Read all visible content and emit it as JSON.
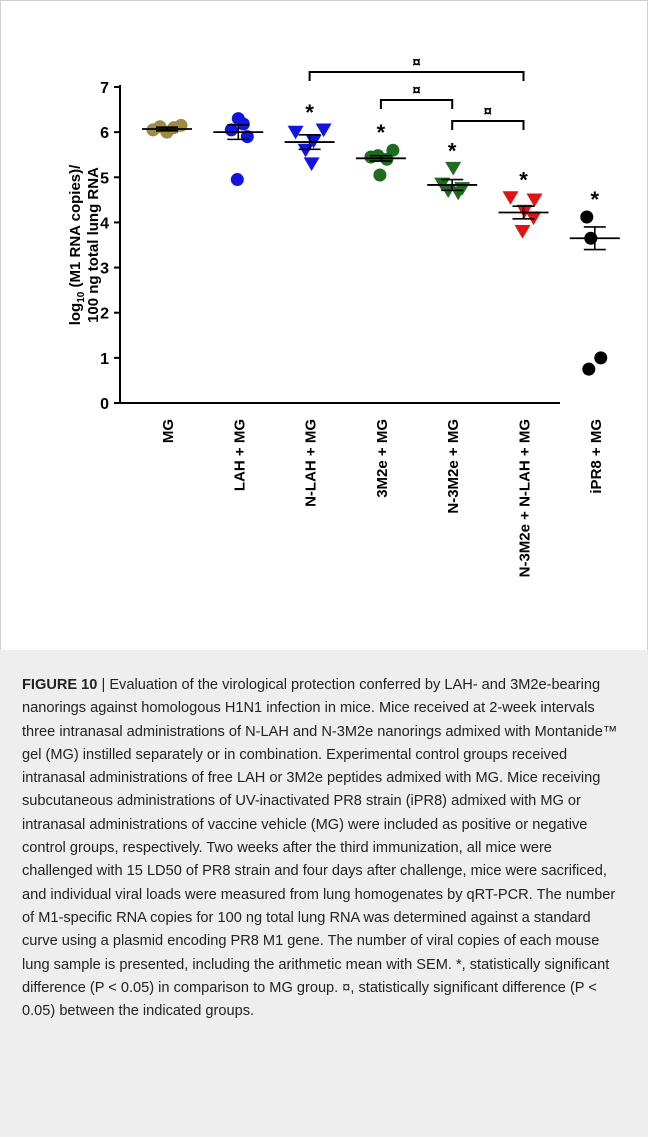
{
  "chart_data": {
    "type": "scatter",
    "title": "",
    "ylabel_line1": "log10 (M1 RNA copies)/",
    "ylabel_line2": "100 ng total lung RNA",
    "ylim": [
      0,
      7
    ],
    "yticks": [
      "0",
      "1",
      "2",
      "3",
      "4",
      "5",
      "6",
      "7"
    ],
    "categories": [
      "MG",
      "LAH + MG",
      "N-LAH + MG",
      "3M2e + MG",
      "N-3M2e + MG",
      "N-3M2e + N-LAH + MG",
      "iPR8 + MG"
    ],
    "groups": [
      {
        "name": "MG",
        "marker": "circle",
        "color": "#9c8a45",
        "points": [
          6.05,
          6.12,
          6.0,
          6.1,
          6.15
        ],
        "mean": 6.07,
        "sem": 0.04,
        "significance": ""
      },
      {
        "name": "LAH + MG",
        "marker": "circle",
        "color": "#1414e0",
        "points": [
          6.3,
          6.18,
          6.05,
          5.9,
          4.95
        ],
        "mean": 6.0,
        "sem": 0.16,
        "significance": ""
      },
      {
        "name": "N-LAH + MG",
        "marker": "triangle-down",
        "color": "#1414e0",
        "points": [
          6.0,
          6.05,
          5.8,
          5.6,
          5.3
        ],
        "mean": 5.78,
        "sem": 0.16,
        "significance": "*"
      },
      {
        "name": "3M2e + MG",
        "marker": "circle",
        "color": "#1f6b1f",
        "points": [
          5.6,
          5.48,
          5.45,
          5.4,
          5.05
        ],
        "mean": 5.42,
        "sem": 0.06,
        "significance": "*"
      },
      {
        "name": "N-3M2e + MG",
        "marker": "triangle-down",
        "color": "#1f6b1f",
        "points": [
          5.2,
          4.85,
          4.75,
          4.7,
          4.65
        ],
        "mean": 4.83,
        "sem": 0.12,
        "significance": "*"
      },
      {
        "name": "N-3M2e + N-LAH + MG",
        "marker": "triangle-down",
        "color": "#e01414",
        "points": [
          4.55,
          4.5,
          4.25,
          4.1,
          3.8
        ],
        "mean": 4.22,
        "sem": 0.14,
        "significance": "*"
      },
      {
        "name": "iPR8 + MG",
        "marker": "circle",
        "color": "#000000",
        "points": [
          4.12,
          3.65,
          1.0,
          0.75
        ],
        "mean": 3.65,
        "sem": 0.25,
        "significance": "*"
      }
    ],
    "comparisons": [
      {
        "from": 2,
        "to": 5,
        "symbol": "¤"
      },
      {
        "from": 3,
        "to": 4,
        "symbol": "¤"
      },
      {
        "from": 4,
        "to": 5,
        "symbol": "¤"
      }
    ]
  },
  "caption": {
    "figure_label": "FIGURE 10",
    "separator": " | ",
    "text": "Evaluation of the virological protection conferred by LAH- and 3M2e-bearing nanorings against homologous H1N1 infection in mice. Mice received at 2-week intervals three intranasal administrations of N-LAH and N-3M2e nanorings admixed with Montanide™ gel (MG) instilled separately or in combination. Experimental control groups received intranasal administrations of free LAH or 3M2e peptides admixed with MG. Mice receiving subcutaneous administrations of UV-inactivated PR8 strain (iPR8) admixed with MG or intranasal administrations of vaccine vehicle (MG) were included as positive or negative control groups, respectively. Two weeks after the third immunization, all mice were challenged with 15 LD50 of PR8 strain and four days after challenge, mice were sacrificed, and individual viral loads were measured from lung homogenates by qRT-PCR. The number of M1-specific RNA copies for 100 ng total lung RNA was determined against a standard curve using a plasmid encoding PR8 M1 gene. The number of viral copies of each mouse lung sample is presented, including the arithmetic mean with SEM. *, statistically significant difference (P < 0.05) in comparison to MG group. ¤, statistically significant difference (P < 0.05) between the indicated groups."
  }
}
